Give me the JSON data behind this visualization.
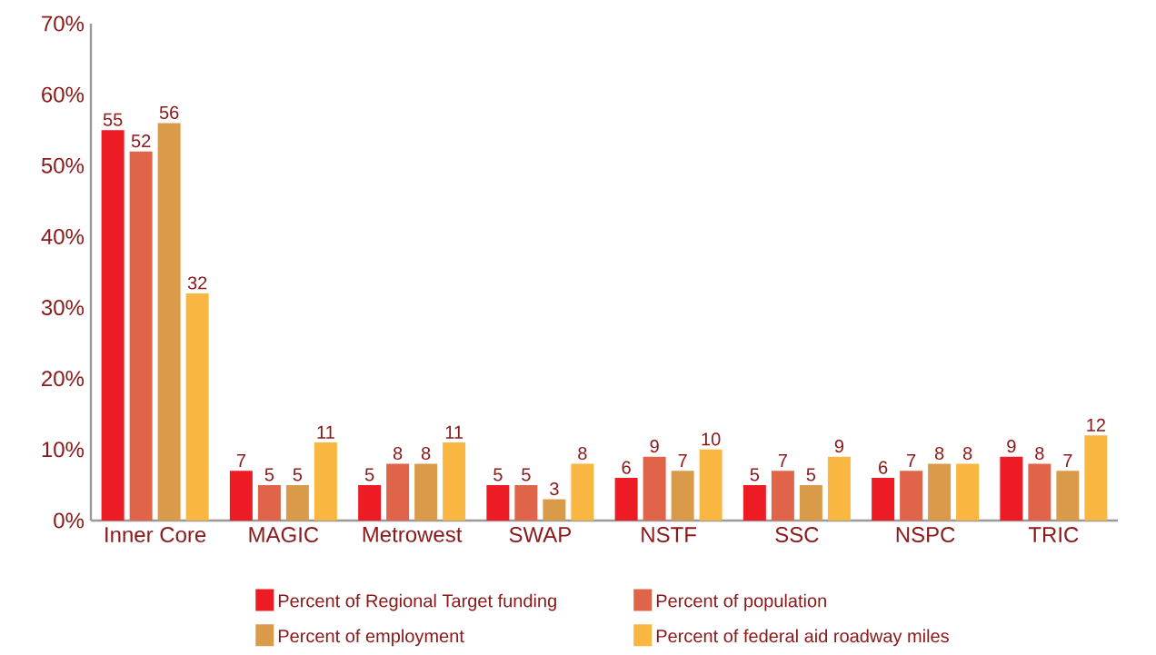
{
  "chart_data": {
    "type": "bar",
    "categories": [
      "Inner Core",
      "MAGIC",
      "Metrowest",
      "SWAP",
      "NSTF",
      "SSC",
      "NSPC",
      "TRIC"
    ],
    "series": [
      {
        "name": "Percent of Regional Target funding",
        "color": "#ed1c24",
        "values": [
          55,
          7,
          5,
          5,
          6,
          5,
          6,
          9
        ]
      },
      {
        "name": "Percent of population",
        "color": "#e0644a",
        "values": [
          52,
          5,
          8,
          5,
          9,
          7,
          7,
          8
        ]
      },
      {
        "name": "Percent of employment",
        "color": "#d99b4a",
        "values": [
          56,
          5,
          8,
          3,
          7,
          5,
          8,
          7
        ]
      },
      {
        "name": "Percent of federal aid roadway miles",
        "color": "#f9b641",
        "values": [
          32,
          11,
          11,
          8,
          10,
          9,
          8,
          12
        ]
      }
    ],
    "ylim": [
      0,
      70
    ],
    "yticks": [
      {
        "value": 0,
        "label": "0%"
      },
      {
        "value": 10,
        "label": "10%"
      },
      {
        "value": 20,
        "label": "20%"
      },
      {
        "value": 30,
        "label": "30%"
      },
      {
        "value": 40,
        "label": "40%"
      },
      {
        "value": 50,
        "label": "50%"
      },
      {
        "value": 60,
        "label": "60%"
      },
      {
        "value": 70,
        "label": "70%"
      }
    ],
    "data_labels": true,
    "legend": "bottom",
    "grid": false
  }
}
